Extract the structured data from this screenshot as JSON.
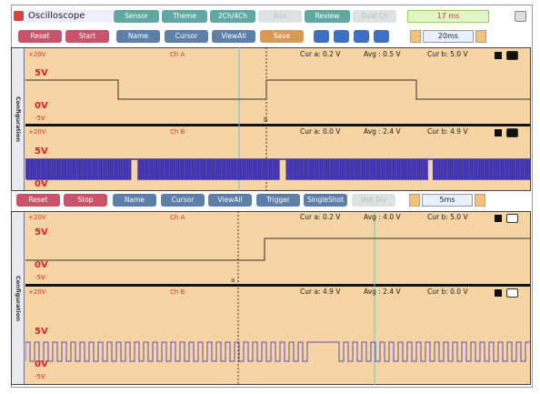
{
  "app_title": "Oscilloscope",
  "tabs": [
    "Sensor",
    "Theme",
    "2Ch/4Ch",
    "Aux",
    "Review",
    "Dual Ch"
  ],
  "timer": "17 ms",
  "scopes": [
    {
      "buttons": [
        "Reset",
        "Start",
        "Name",
        "Cursor",
        "ViewAll",
        "Save"
      ],
      "timebase": "20ms",
      "side_label": "Configuration",
      "cursor_label": "b",
      "channels": [
        {
          "name": "Ch A",
          "scale_top": "+20V",
          "levels": [
            "5V",
            "0V",
            "-5V"
          ],
          "cur_a": "Cur a: 0.2 V",
          "avg": "Avg : 0.5 V",
          "cur_b": "Cur b: 5.0 V"
        },
        {
          "name": "Ch B",
          "scale_top": "+20V",
          "levels": [
            "5V",
            "0V"
          ],
          "cur_a": "Cur a: 0.0 V",
          "avg": "Avg : 2.4 V",
          "cur_b": "Cur b: 4.9 V"
        }
      ]
    },
    {
      "buttons": [
        "Reset",
        "Stop",
        "Name",
        "Cursor",
        "ViewAll",
        "Trigger",
        "SingleShot",
        "Volt Div"
      ],
      "timebase": "5ms",
      "side_label": "Configuration",
      "cursor_label": "a",
      "channels": [
        {
          "name": "Ch A",
          "scale_top": "+20V",
          "levels": [
            "5V",
            "0V",
            "-5V"
          ],
          "cur_a": "Cur a: 0.2 V",
          "avg": "Avg : 4.0 V",
          "cur_b": "Cur b: 5.0 V"
        },
        {
          "name": "Ch B",
          "scale_top": "+20V",
          "levels": [
            "5V",
            "0V",
            "-5V"
          ],
          "cur_a": "Cur a: 4.9 V",
          "avg": "Avg : 2.4 V",
          "cur_b": "Cur b: 0.0 V"
        }
      ]
    }
  ]
}
